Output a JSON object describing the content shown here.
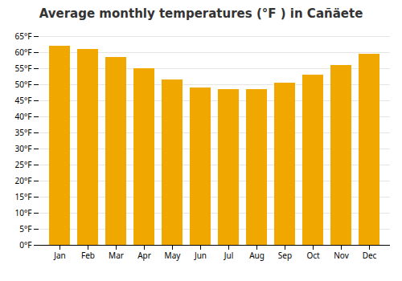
{
  "chart_data": {
    "type": "bar",
    "title": "Average monthly temperatures (°F ) in Cañäete",
    "categories": [
      "Jan",
      "Feb",
      "Mar",
      "Apr",
      "May",
      "Jun",
      "Jul",
      "Aug",
      "Sep",
      "Oct",
      "Nov",
      "Dec"
    ],
    "values": [
      62,
      61,
      58.5,
      55,
      51.5,
      49,
      48.5,
      48.5,
      50.5,
      53,
      56,
      59.5
    ],
    "color": "#F0A800",
    "ylim": [
      0,
      65
    ],
    "yticks": [
      {
        "value": 0,
        "label": "0°F"
      },
      {
        "value": 5,
        "label": "5°F"
      },
      {
        "value": 10,
        "label": "10°F"
      },
      {
        "value": 15,
        "label": "15°F"
      },
      {
        "value": 20,
        "label": "20°F"
      },
      {
        "value": 25,
        "label": "25°F"
      },
      {
        "value": 30,
        "label": "30°F"
      },
      {
        "value": 35,
        "label": "35°F"
      },
      {
        "value": 40,
        "label": "40°F"
      },
      {
        "value": 45,
        "label": "45°F"
      },
      {
        "value": 50,
        "label": "50°F"
      },
      {
        "value": 55,
        "label": "55°F"
      },
      {
        "value": 60,
        "label": "60°F"
      },
      {
        "value": 65,
        "label": "65°F"
      }
    ],
    "grid": true
  }
}
